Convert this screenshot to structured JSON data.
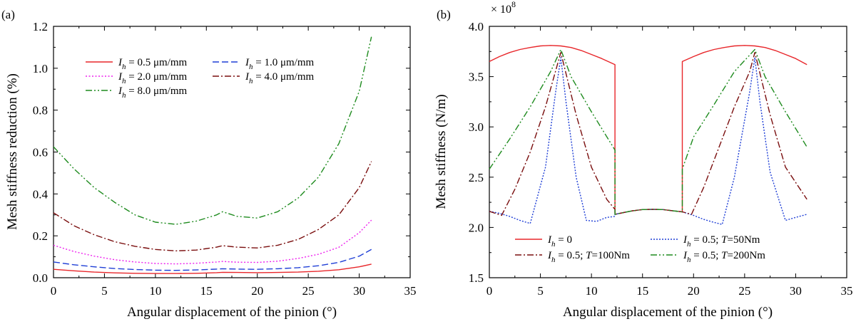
{
  "chart_data": [
    {
      "panel_label": "(a)",
      "type": "line",
      "xlabel": "Angular displacement of the pinion (°)",
      "ylabel": "Mesh stiffness reduction (%)",
      "xlim": [
        0,
        35
      ],
      "ylim": [
        0,
        1.2
      ],
      "xticks": [
        0,
        5,
        10,
        15,
        20,
        25,
        30,
        35
      ],
      "yticks": [
        0.0,
        0.2,
        0.4,
        0.6,
        0.8,
        1.0,
        1.2
      ],
      "ytick_labels": [
        "0.0",
        "0.2",
        "0.4",
        "0.6",
        "0.8",
        "1.0",
        "1.2"
      ],
      "legend_position": "top-left",
      "legend_columns": 2,
      "series": [
        {
          "name": "I_h = 0.5 μm/mm",
          "legend_var": "I",
          "legend_sub": "h",
          "legend_rest": " = 0.5 μm/mm",
          "color": "#e8262a",
          "dash": "",
          "x": [
            0,
            2,
            4,
            6,
            8,
            10,
            12,
            14,
            16,
            16.6,
            18,
            20,
            22,
            24,
            26,
            28,
            30,
            31.2
          ],
          "values": [
            0.04,
            0.033,
            0.027,
            0.023,
            0.021,
            0.02,
            0.02,
            0.021,
            0.024,
            0.026,
            0.025,
            0.024,
            0.025,
            0.027,
            0.031,
            0.038,
            0.052,
            0.065
          ]
        },
        {
          "name": "I_h = 1.0 μm/mm",
          "legend_var": "I",
          "legend_sub": "h",
          "legend_rest": " = 1.0 μm/mm",
          "color": "#1f3fd6",
          "dash": "9,4",
          "x": [
            0,
            2,
            4,
            6,
            8,
            10,
            12,
            14,
            16,
            16.6,
            18,
            20,
            22,
            24,
            26,
            28,
            30,
            31.2
          ],
          "values": [
            0.075,
            0.062,
            0.052,
            0.044,
            0.039,
            0.036,
            0.035,
            0.037,
            0.041,
            0.043,
            0.041,
            0.04,
            0.043,
            0.048,
            0.057,
            0.073,
            0.103,
            0.135
          ]
        },
        {
          "name": "I_h = 2.0 μm/mm",
          "legend_var": "I",
          "legend_sub": "h",
          "legend_rest": " = 2.0 μm/mm",
          "color": "#ee20ee",
          "dash": "2,2.5",
          "x": [
            0,
            2,
            4,
            6,
            8,
            10,
            12,
            14,
            16,
            16.6,
            18,
            20,
            22,
            24,
            26,
            28,
            30,
            31.2
          ],
          "values": [
            0.155,
            0.125,
            0.103,
            0.086,
            0.075,
            0.068,
            0.066,
            0.069,
            0.075,
            0.078,
            0.074,
            0.073,
            0.079,
            0.092,
            0.112,
            0.145,
            0.215,
            0.275
          ]
        },
        {
          "name": "I_h = 4.0 μm/mm",
          "legend_var": "I",
          "legend_sub": "h",
          "legend_rest": " = 4.0 μm/mm",
          "color": "#7a0e0e",
          "dash": "9,3,2,3",
          "x": [
            0,
            2,
            4,
            6,
            8,
            10,
            12,
            14,
            16,
            16.6,
            18,
            20,
            22,
            24,
            26,
            28,
            30,
            31.2
          ],
          "values": [
            0.31,
            0.248,
            0.205,
            0.172,
            0.15,
            0.135,
            0.128,
            0.132,
            0.146,
            0.153,
            0.146,
            0.142,
            0.155,
            0.183,
            0.23,
            0.3,
            0.43,
            0.555
          ]
        },
        {
          "name": "I_h = 8.0 μm/mm",
          "legend_var": "I",
          "legend_sub": "h",
          "legend_rest": " = 8.0 μm/mm",
          "color": "#1e8b1e",
          "dash": "9,3,2,3,2,3",
          "x": [
            0,
            2,
            4,
            6,
            8,
            10,
            12,
            14,
            16,
            16.6,
            18,
            20,
            22,
            24,
            26,
            28,
            30,
            31.2
          ],
          "values": [
            0.625,
            0.52,
            0.43,
            0.36,
            0.3,
            0.265,
            0.255,
            0.27,
            0.3,
            0.315,
            0.293,
            0.285,
            0.315,
            0.38,
            0.48,
            0.64,
            0.89,
            1.15
          ]
        }
      ]
    },
    {
      "panel_label": "(b)",
      "type": "line",
      "xlabel": "Angular displacement of the pinion (°)",
      "ylabel": "Mesh stiffness (N/m)",
      "multiplier_base": "× 10",
      "multiplier_exp": "8",
      "xlim": [
        0,
        35
      ],
      "ylim": [
        1.5,
        4.0
      ],
      "xticks": [
        0,
        5,
        10,
        15,
        20,
        25,
        30,
        35
      ],
      "yticks": [
        1.5,
        2.0,
        2.5,
        3.0,
        3.5,
        4.0
      ],
      "ytick_labels": [
        "1.5",
        "2.0",
        "2.5",
        "3.0",
        "3.5",
        "4.0"
      ],
      "legend_position": "bottom-center",
      "legend_columns": 2,
      "series": [
        {
          "name": "I_h = 0",
          "legend_var": "I",
          "legend_sub": "h",
          "legend_rest": " = 0",
          "color": "#e8262a",
          "dash": "",
          "x": [
            0,
            1,
            2,
            3,
            4,
            5,
            6,
            7,
            8,
            9,
            10,
            11,
            12.3,
            12.3,
            13,
            14,
            15,
            16,
            17,
            18,
            18.9,
            18.9,
            20,
            21,
            22,
            23,
            24,
            25,
            26,
            27,
            28,
            29,
            30,
            31.1
          ],
          "values": [
            3.65,
            3.7,
            3.74,
            3.77,
            3.79,
            3.805,
            3.81,
            3.805,
            3.79,
            3.76,
            3.72,
            3.68,
            3.62,
            2.13,
            2.145,
            2.165,
            2.178,
            2.18,
            2.178,
            2.165,
            2.155,
            3.65,
            3.7,
            3.74,
            3.77,
            3.79,
            3.805,
            3.81,
            3.805,
            3.79,
            3.76,
            3.72,
            3.68,
            3.62
          ]
        },
        {
          "name": "I_h = 0.5; T=50Nm",
          "legend_var": "I",
          "legend_sub": "h",
          "legend_rest": " = 0.5;  ",
          "legend_var2": "T",
          "legend_rest2": "=50Nm",
          "color": "#1f3fd6",
          "dash": "2,2",
          "x": [
            0,
            1,
            2,
            3,
            4,
            5.5,
            6.5,
            7,
            7.5,
            8.5,
            9.5,
            10.5,
            11.5,
            12.3,
            12.3,
            13,
            14,
            15,
            16,
            17,
            18,
            18.9,
            18.9,
            20,
            21,
            22,
            22.8,
            24,
            25.5,
            26,
            26.5,
            27.5,
            29,
            30,
            31.1
          ],
          "values": [
            2.16,
            2.14,
            2.11,
            2.07,
            2.04,
            2.6,
            3.35,
            3.69,
            3.25,
            2.5,
            2.07,
            2.06,
            2.1,
            2.11,
            2.13,
            2.145,
            2.165,
            2.178,
            2.18,
            2.178,
            2.165,
            2.155,
            2.155,
            2.12,
            2.08,
            2.05,
            2.03,
            2.5,
            3.35,
            3.69,
            3.25,
            2.55,
            2.07,
            2.1,
            2.13
          ]
        },
        {
          "name": "I_h = 0.5; T=100Nm",
          "legend_var": "I",
          "legend_sub": "h",
          "legend_rest": " = 0.5;  ",
          "legend_var2": "T",
          "legend_rest2": "=100Nm",
          "color": "#7a0e0e",
          "dash": "9,3,2,3",
          "x": [
            0,
            1.2,
            2.5,
            4,
            5.5,
            7,
            8.5,
            10,
            11.5,
            12.3,
            12.3,
            13,
            14,
            15,
            16,
            17,
            18,
            18.9,
            18.9,
            19.8,
            21,
            22.5,
            24,
            25.5,
            26,
            27.5,
            29,
            31.1
          ],
          "values": [
            2.16,
            2.12,
            2.38,
            2.75,
            3.2,
            3.74,
            3.12,
            2.6,
            2.28,
            2.18,
            2.13,
            2.145,
            2.165,
            2.178,
            2.18,
            2.178,
            2.165,
            2.155,
            2.155,
            2.13,
            2.4,
            2.8,
            3.2,
            3.55,
            3.74,
            3.12,
            2.6,
            2.28
          ]
        },
        {
          "name": "I_h = 0.5; T=200Nm",
          "legend_var": "I",
          "legend_sub": "h",
          "legend_rest": " = 0.5;  ",
          "legend_var2": "T",
          "legend_rest2": "=200Nm",
          "color": "#1e8b1e",
          "dash": "9,3,2,3,2,3",
          "x": [
            0,
            2,
            4,
            6,
            7,
            8,
            10,
            12.3,
            12.3,
            13,
            14,
            15,
            16,
            17,
            18,
            18.9,
            18.9,
            20,
            22,
            24,
            26,
            27,
            29,
            31.1
          ],
          "values": [
            2.58,
            2.88,
            3.2,
            3.55,
            3.77,
            3.5,
            3.15,
            2.77,
            2.13,
            2.145,
            2.165,
            2.178,
            2.18,
            2.178,
            2.165,
            2.155,
            2.58,
            2.9,
            3.22,
            3.55,
            3.77,
            3.5,
            3.15,
            2.8
          ]
        }
      ]
    }
  ]
}
